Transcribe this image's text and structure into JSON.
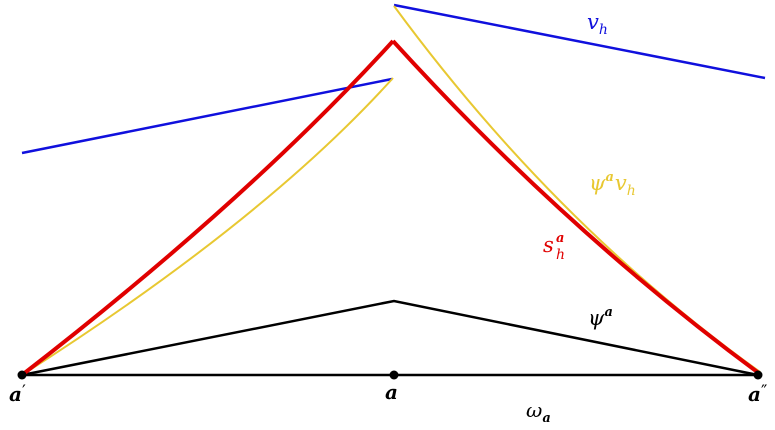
{
  "labels": {
    "v_h": {
      "base": "v",
      "sub": "h"
    },
    "psi_a_v_h": {
      "base": "ψ",
      "sup": "a",
      "tail": "v",
      "tail_sub": "h"
    },
    "s_h_a": {
      "base": "s",
      "sub": "h",
      "sup": "a"
    },
    "psi_a": {
      "base": "ψ",
      "sup": "a"
    },
    "a_prime": {
      "base": "a",
      "prime": "′"
    },
    "a_center": {
      "base": "a"
    },
    "a_dprime": {
      "base": "a",
      "prime": "″"
    },
    "omega_a": {
      "base": "ω",
      "sub": "a"
    }
  },
  "colors": {
    "v_h": "#1010dd",
    "psi_a_v_h": "#e8c832",
    "s_h_a": "#e00000",
    "psi_a": "#000000",
    "segment": "#000000"
  }
}
